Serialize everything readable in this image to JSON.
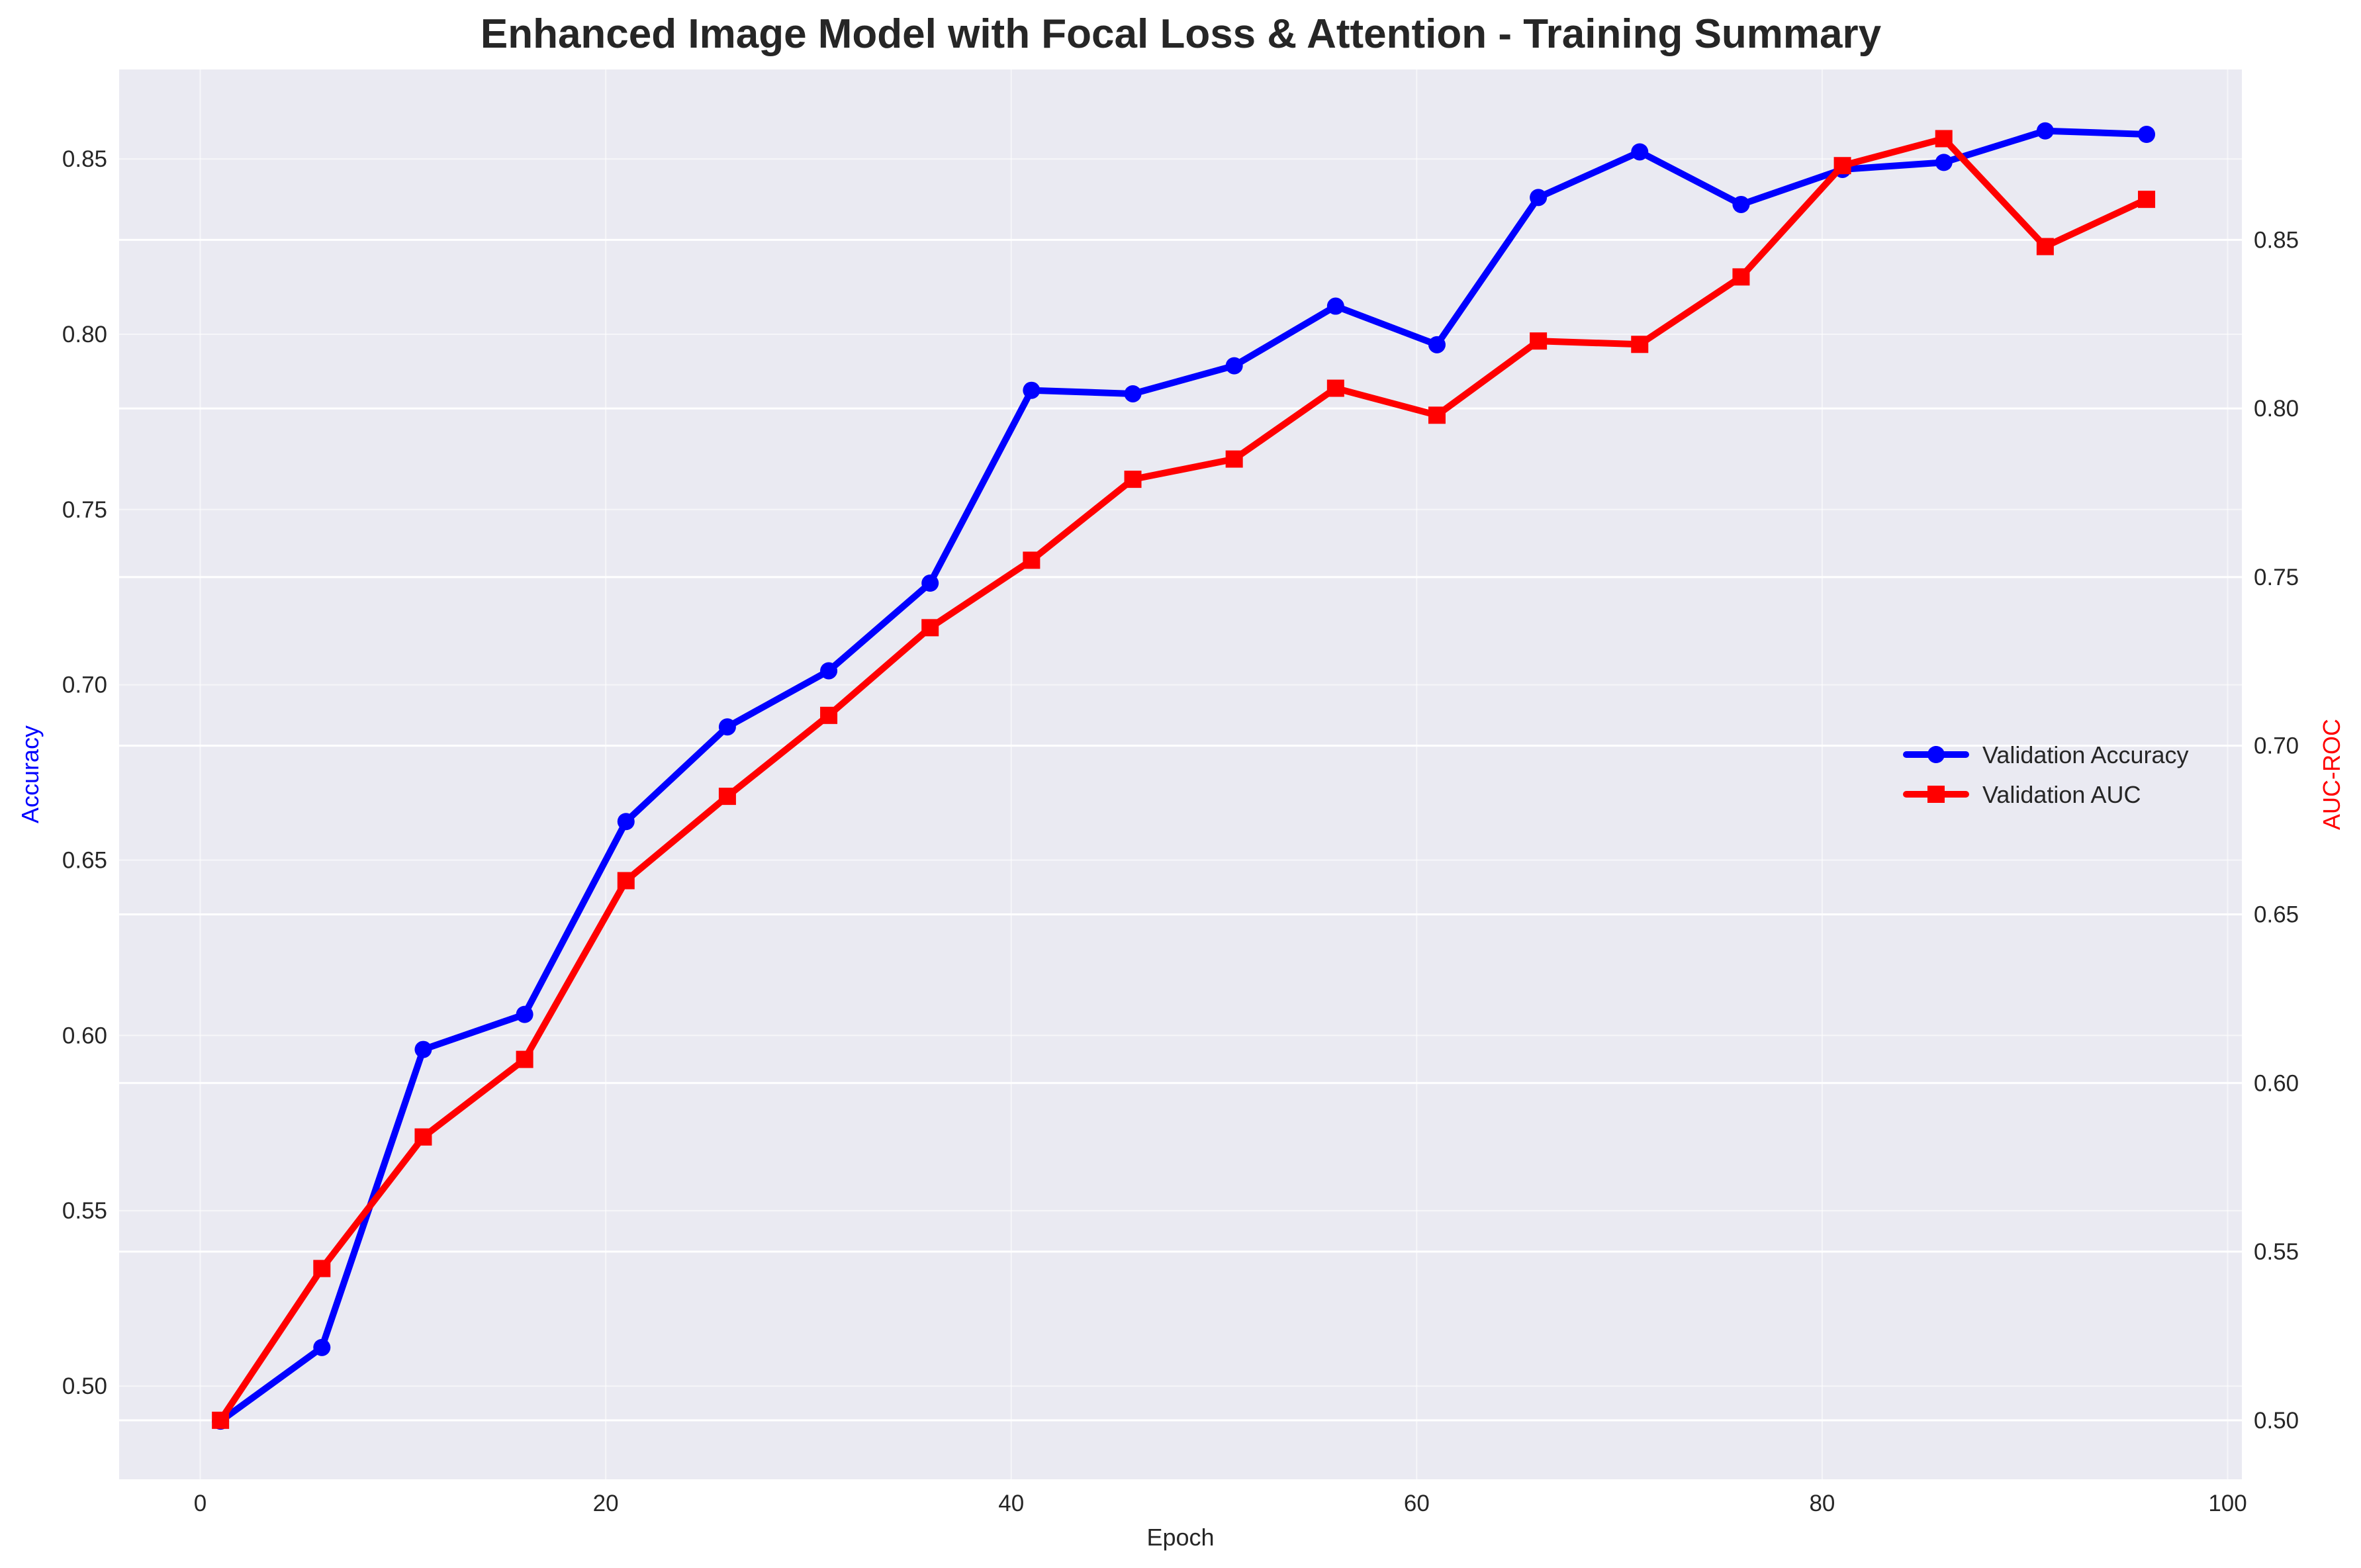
{
  "chart_data": {
    "type": "line",
    "title": "Enhanced Image Model with Focal Loss & Attention - Training Summary",
    "xlabel": "Epoch",
    "ylabel_left": "Accuracy",
    "ylabel_right": "AUC-ROC",
    "xlim": [
      -4,
      100.7
    ],
    "ylim_left": [
      0.4734,
      0.8755
    ],
    "ylim_right": [
      0.4825,
      0.9005
    ],
    "x_ticks": [
      0,
      20,
      40,
      60,
      80,
      100
    ],
    "y_ticks_left": [
      0.5,
      0.55,
      0.6,
      0.65,
      0.7,
      0.75,
      0.8,
      0.85
    ],
    "y_ticks_right": [
      0.5,
      0.55,
      0.6,
      0.65,
      0.7,
      0.75,
      0.8,
      0.85
    ],
    "grid": true,
    "legend_position": "center-right",
    "x": [
      1,
      6,
      11,
      16,
      21,
      26,
      31,
      36,
      41,
      46,
      51,
      56,
      61,
      66,
      71,
      76,
      81,
      86,
      91,
      96
    ],
    "series": [
      {
        "name": "Validation Accuracy",
        "axis": "left",
        "color": "#0000ff",
        "marker": "circle",
        "values": [
          0.49,
          0.511,
          0.596,
          0.606,
          0.661,
          0.688,
          0.704,
          0.729,
          0.784,
          0.783,
          0.791,
          0.808,
          0.797,
          0.839,
          0.852,
          0.837,
          0.847,
          0.849,
          0.858,
          0.857
        ]
      },
      {
        "name": "Validation AUC",
        "axis": "right",
        "color": "#ff0000",
        "marker": "square",
        "values": [
          0.5,
          0.545,
          0.584,
          0.607,
          0.66,
          0.685,
          0.709,
          0.735,
          0.755,
          0.779,
          0.785,
          0.806,
          0.798,
          0.82,
          0.819,
          0.839,
          0.872,
          0.88,
          0.848,
          0.862
        ]
      }
    ]
  },
  "colors": {
    "plot_background": "#eaeaf2",
    "grid": "#ffffff",
    "left_axis_label": "#0000ff",
    "right_axis_label": "#ff0000"
  }
}
